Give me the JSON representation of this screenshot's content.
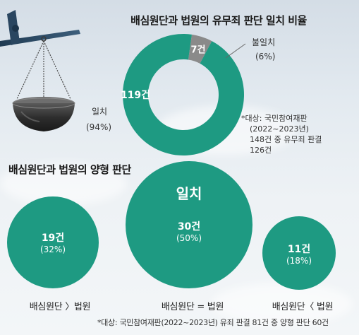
{
  "chart_data": [
    {
      "type": "pie",
      "title": "배심원단과 법원의 유무죄 판단 일치 비율",
      "slices": [
        {
          "label": "일치",
          "value": 119,
          "value_text": "119건",
          "percent_text": "(94%)"
        },
        {
          "label": "불일치",
          "value": 7,
          "value_text": "7건",
          "percent_text": "(6%)"
        }
      ],
      "note": [
        "*대상: 국민참여재판",
        "(2022~2023년)",
        "148건 중 유무죄 판결",
        "126건"
      ]
    },
    {
      "type": "bubble",
      "title": "배심원단과 법원의 양형 판단",
      "items": [
        {
          "label": "배심원단 〉법원",
          "value": 19,
          "value_text": "19건",
          "percent_text": "(32%)",
          "header": ""
        },
        {
          "label": "배심원단 = 법원",
          "value": 30,
          "value_text": "30건",
          "percent_text": "(50%)",
          "header": "일치"
        },
        {
          "label": "배심원단〈 법원",
          "value": 11,
          "value_text": "11건",
          "percent_text": "(18%)",
          "header": ""
        }
      ],
      "footnote": "*대상: 국민참여재판(2022~2023년) 유죄 판결 81건 중 양형 판단 60건"
    }
  ],
  "colors": {
    "primary": "#1e9a82",
    "secondary": "#8a8a8a"
  },
  "icons": [
    "balance-scale-icon"
  ]
}
